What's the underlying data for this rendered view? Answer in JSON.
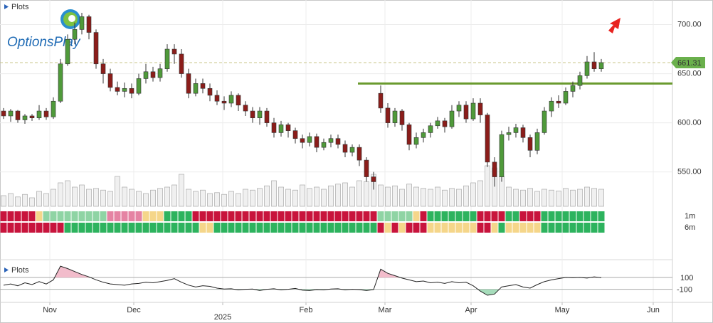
{
  "chart_data": {
    "type": "candlestick",
    "logo": "OptionsPlay",
    "panel_title": "Plots",
    "xlim": [
      -0.5,
      94
    ],
    "ylim": [
      515,
      725
    ],
    "xticks": [
      {
        "value": 6.5,
        "label": "Nov"
      },
      {
        "value": 18.3,
        "label": "Dec"
      },
      {
        "value": 30.8,
        "label": "2025"
      },
      {
        "value": 42.5,
        "label": "Feb"
      },
      {
        "value": 53.6,
        "label": "Mar"
      },
      {
        "value": 65.7,
        "label": "Apr"
      },
      {
        "value": 78.5,
        "label": "May"
      },
      {
        "value": 91.3,
        "label": "Jun"
      }
    ],
    "yticks": [
      {
        "value": 550,
        "label": "550.00"
      },
      {
        "value": 600,
        "label": "600.00"
      },
      {
        "value": 650,
        "label": "650.00"
      },
      {
        "value": 700,
        "label": "700.00"
      }
    ],
    "up_color": "#4f9a3a",
    "down_color": "#8b1d1a",
    "open": [
      612,
      607,
      612,
      603,
      607,
      605,
      612,
      606,
      622,
      660,
      685,
      695,
      708,
      692,
      660,
      650,
      636,
      632,
      635,
      630,
      645,
      652,
      646,
      655,
      675,
      670,
      650,
      630,
      640,
      635,
      628,
      622,
      620,
      628,
      618,
      612,
      605,
      612,
      600,
      590,
      598,
      592,
      584,
      580,
      586,
      575,
      580,
      584,
      578,
      570,
      575,
      562,
      545,
      630,
      615,
      600,
      612,
      598,
      578,
      585,
      590,
      597,
      602,
      596,
      612,
      618,
      604,
      620,
      608,
      560,
      545,
      588,
      590,
      595,
      585,
      572,
      590,
      612,
      622,
      620,
      632,
      638,
      648,
      662,
      655
    ],
    "high": [
      615,
      614,
      613,
      609,
      609,
      618,
      615,
      626,
      665,
      690,
      702,
      712,
      710,
      695,
      665,
      655,
      642,
      641,
      640,
      650,
      660,
      657,
      660,
      680,
      680,
      675,
      655,
      645,
      645,
      640,
      633,
      627,
      632,
      630,
      622,
      616,
      616,
      615,
      605,
      602,
      600,
      595,
      588,
      590,
      589,
      584,
      588,
      588,
      582,
      578,
      578,
      565,
      550,
      638,
      620,
      615,
      614,
      600,
      590,
      594,
      600,
      606,
      605,
      618,
      622,
      622,
      625,
      625,
      610,
      565,
      592,
      596,
      599,
      598,
      588,
      594,
      616,
      626,
      628,
      636,
      642,
      652,
      668,
      672,
      665
    ],
    "low": [
      604,
      601,
      600,
      599,
      602,
      603,
      603,
      604,
      620,
      658,
      680,
      690,
      685,
      655,
      640,
      632,
      628,
      626,
      625,
      628,
      640,
      642,
      642,
      652,
      660,
      646,
      625,
      627,
      630,
      622,
      618,
      613,
      616,
      612,
      607,
      600,
      598,
      596,
      585,
      586,
      585,
      579,
      574,
      576,
      570,
      572,
      575,
      574,
      565,
      566,
      556,
      540,
      532,
      610,
      595,
      596,
      592,
      572,
      574,
      580,
      585,
      594,
      590,
      594,
      606,
      600,
      602,
      600,
      555,
      535,
      540,
      582,
      585,
      580,
      565,
      568,
      588,
      606,
      615,
      618,
      626,
      634,
      645,
      652,
      652
    ],
    "close": [
      607,
      612,
      603,
      607,
      605,
      612,
      606,
      622,
      660,
      685,
      695,
      708,
      692,
      660,
      650,
      636,
      632,
      635,
      630,
      645,
      652,
      646,
      655,
      675,
      670,
      650,
      630,
      640,
      635,
      628,
      622,
      620,
      628,
      618,
      612,
      605,
      612,
      600,
      590,
      598,
      592,
      584,
      580,
      586,
      575,
      580,
      584,
      578,
      570,
      575,
      562,
      545,
      540,
      615,
      600,
      612,
      598,
      578,
      585,
      590,
      597,
      602,
      596,
      612,
      618,
      604,
      620,
      608,
      560,
      545,
      588,
      590,
      595,
      585,
      572,
      590,
      612,
      622,
      620,
      632,
      638,
      648,
      662,
      655,
      661.31
    ],
    "volume": [
      25,
      30,
      22,
      28,
      20,
      35,
      30,
      40,
      55,
      60,
      45,
      50,
      40,
      42,
      38,
      35,
      70,
      45,
      40,
      35,
      30,
      38,
      42,
      45,
      50,
      75,
      40,
      35,
      38,
      30,
      32,
      28,
      35,
      30,
      40,
      38,
      42,
      48,
      60,
      45,
      40,
      38,
      50,
      42,
      45,
      40,
      48,
      52,
      55,
      45,
      60,
      58,
      75,
      50,
      45,
      48,
      40,
      52,
      45,
      42,
      40,
      45,
      38,
      42,
      40,
      48,
      55,
      60,
      95,
      90,
      70,
      45,
      40,
      38,
      42,
      35,
      40,
      38,
      36,
      42,
      38,
      40,
      45,
      42,
      40
    ],
    "vlim": [
      0,
      100
    ],
    "resistance": 640,
    "resistance_color": "#6a9a2e",
    "heatmap": [
      {
        "label": "1m",
        "runs": [
          {
            "color": "#c8143c",
            "n": 5
          },
          {
            "color": "#f5d68a",
            "n": 1
          },
          {
            "color": "#8fd4a4",
            "n": 9
          },
          {
            "color": "#e583a3",
            "n": 5
          },
          {
            "color": "#f5d68a",
            "n": 3
          },
          {
            "color": "#2db35e",
            "n": 4
          },
          {
            "color": "#c8143c",
            "n": 26
          },
          {
            "color": "#8fd4a4",
            "n": 5
          },
          {
            "color": "#f5d68a",
            "n": 1
          },
          {
            "color": "#c8143c",
            "n": 1
          },
          {
            "color": "#2db35e",
            "n": 7
          },
          {
            "color": "#c8143c",
            "n": 4
          },
          {
            "color": "#2db35e",
            "n": 2
          },
          {
            "color": "#c8143c",
            "n": 3
          },
          {
            "color": "#2db35e",
            "n": 9
          }
        ]
      },
      {
        "label": "6m",
        "runs": [
          {
            "color": "#c8143c",
            "n": 9
          },
          {
            "color": "#2db35e",
            "n": 19
          },
          {
            "color": "#f5d68a",
            "n": 2
          },
          {
            "color": "#2db35e",
            "n": 23
          },
          {
            "color": "#c8143c",
            "n": 1
          },
          {
            "color": "#f5d68a",
            "n": 1
          },
          {
            "color": "#c8143c",
            "n": 1
          },
          {
            "color": "#f5d68a",
            "n": 1
          },
          {
            "color": "#c8143c",
            "n": 3
          },
          {
            "color": "#f5d68a",
            "n": 7
          },
          {
            "color": "#c8143c",
            "n": 2
          },
          {
            "color": "#f5d68a",
            "n": 1
          },
          {
            "color": "#2db35e",
            "n": 1
          },
          {
            "color": "#f5d68a",
            "n": 5
          },
          {
            "color": "#2db35e",
            "n": 9
          }
        ]
      }
    ],
    "oscillator": {
      "ylim": [
        -320,
        400
      ],
      "yticks": [
        100,
        -100
      ],
      "values": [
        -30,
        -10,
        -40,
        10,
        -20,
        30,
        -10,
        60,
        290,
        250,
        200,
        150,
        110,
        60,
        20,
        -10,
        -20,
        -30,
        -10,
        0,
        20,
        10,
        30,
        50,
        80,
        20,
        -30,
        -60,
        -40,
        -50,
        -80,
        -95,
        -90,
        -110,
        -100,
        -95,
        -120,
        -100,
        -90,
        -110,
        -100,
        -85,
        -115,
        -120,
        -105,
        -110,
        -95,
        -90,
        -110,
        -100,
        -105,
        -120,
        -105,
        240,
        170,
        130,
        90,
        60,
        30,
        40,
        10,
        20,
        0,
        30,
        10,
        20,
        -40,
        -130,
        -200,
        -180,
        -60,
        -40,
        -20,
        -60,
        -80,
        -20,
        30,
        60,
        80,
        100,
        95,
        100,
        90,
        110,
        95
      ]
    }
  }
}
